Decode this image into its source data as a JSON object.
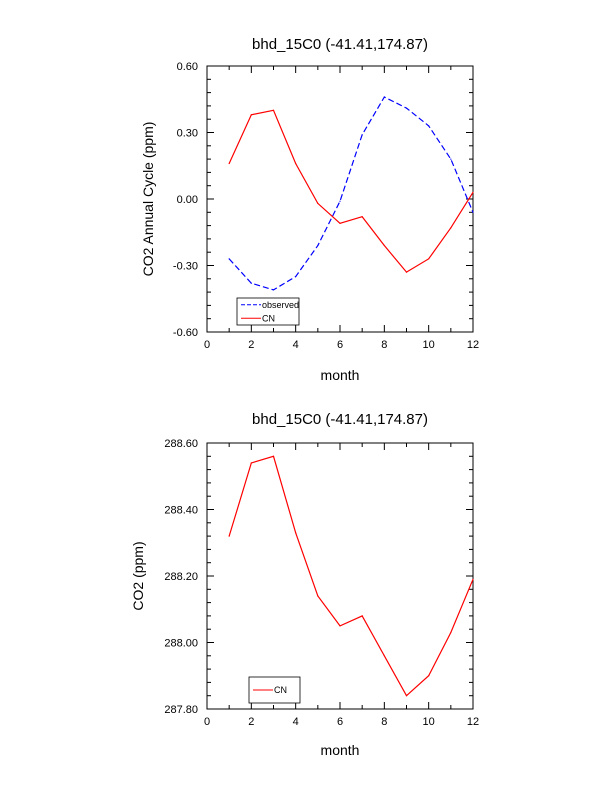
{
  "chart_data": [
    {
      "type": "line",
      "title": "bhd_15C0 (-41.41,174.87)",
      "xlabel": "month",
      "ylabel": "CO2 Annual Cycle (ppm)",
      "xlim": [
        0,
        12
      ],
      "ylim": [
        -0.6,
        0.6
      ],
      "xticks": [
        0,
        2,
        4,
        6,
        8,
        10,
        12
      ],
      "yticks": [
        -0.6,
        -0.3,
        0.0,
        0.3,
        0.6
      ],
      "ytick_labels": [
        "-0.60",
        "-0.30",
        "0.00",
        "0.30",
        "0.60"
      ],
      "x": [
        1,
        2,
        3,
        4,
        5,
        6,
        7,
        8,
        9,
        10,
        11,
        12
      ],
      "series": [
        {
          "name": "observed",
          "color": "#0000ff",
          "dash": "dashed",
          "values": [
            -0.27,
            -0.38,
            -0.41,
            -0.35,
            -0.21,
            -0.01,
            0.29,
            0.46,
            0.41,
            0.33,
            0.18,
            -0.06
          ]
        },
        {
          "name": "CN",
          "color": "#ff0000",
          "dash": "solid",
          "values": [
            0.16,
            0.38,
            0.4,
            0.16,
            -0.02,
            -0.11,
            -0.08,
            -0.21,
            -0.33,
            -0.27,
            -0.13,
            0.03
          ]
        }
      ],
      "legend": [
        "observed",
        "CN"
      ]
    },
    {
      "type": "line",
      "title": "bhd_15C0 (-41.41,174.87)",
      "xlabel": "month",
      "ylabel": "CO2 (ppm)",
      "xlim": [
        0,
        12
      ],
      "ylim": [
        287.8,
        288.6
      ],
      "xticks": [
        0,
        2,
        4,
        6,
        8,
        10,
        12
      ],
      "yticks": [
        287.8,
        288.0,
        288.2,
        288.4,
        288.6
      ],
      "ytick_labels": [
        "287.80",
        "288.00",
        "288.20",
        "288.40",
        "288.60"
      ],
      "x": [
        1,
        2,
        3,
        4,
        5,
        6,
        7,
        8,
        9,
        10,
        11,
        12
      ],
      "series": [
        {
          "name": "CN",
          "color": "#ff0000",
          "dash": "solid",
          "values": [
            288.32,
            288.54,
            288.56,
            288.33,
            288.14,
            288.05,
            288.08,
            287.96,
            287.84,
            287.9,
            288.03,
            288.19
          ]
        }
      ],
      "legend": [
        "CN"
      ]
    }
  ]
}
